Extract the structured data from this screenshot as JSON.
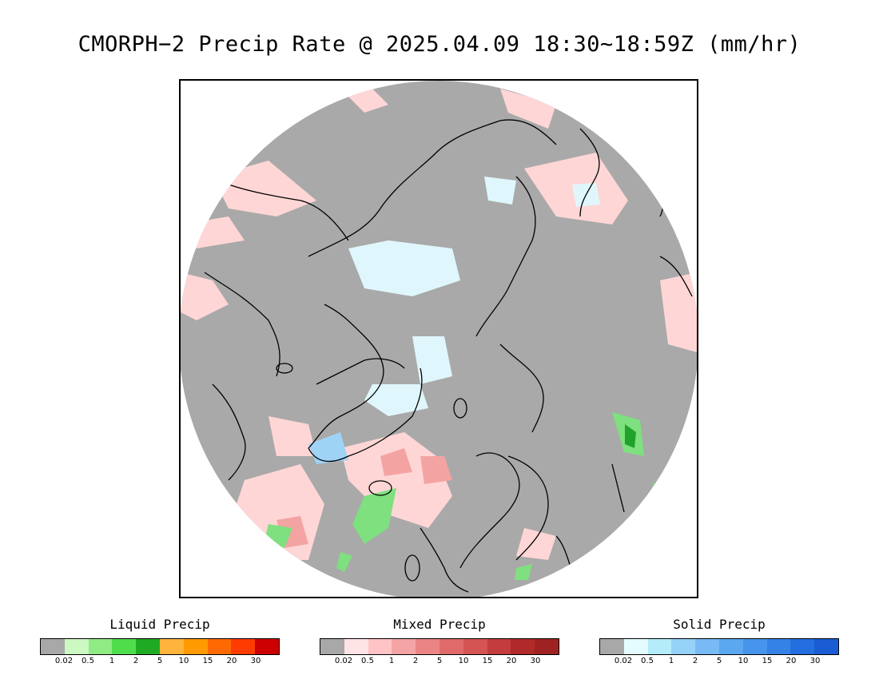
{
  "title": "CMORPH−2 Precip Rate @ 2025.04.09 18:30~18:59Z (mm/hr)",
  "map": {
    "projection": "north-polar-stereographic",
    "colors": {
      "background": "#a9a9a9",
      "coastline": "#000000",
      "mixed_light": "#ffd6d6",
      "mixed_mid": "#f4a3a3",
      "solid_light": "#dff7fc",
      "solid_mid": "#9fd3f6",
      "liquid_light": "#7ee07e",
      "liquid_dark": "#22a22a"
    }
  },
  "legends": [
    {
      "title": "Liquid Precip",
      "colors": [
        "#a8a8a8",
        "#ccf8c2",
        "#91eb84",
        "#4fdd4c",
        "#20aa23",
        "#ffb43c",
        "#ff9a00",
        "#ff6a00",
        "#ff3c00",
        "#cc0000"
      ],
      "ticks": [
        "0.02",
        "0.5",
        "1",
        "2",
        "5",
        "10",
        "15",
        "20",
        "30"
      ]
    },
    {
      "title": "Mixed Precip",
      "colors": [
        "#a8a8a8",
        "#ffe4e6",
        "#ffc3c6",
        "#f4a4a4",
        "#eb8585",
        "#e06a6a",
        "#d45353",
        "#c43c3c",
        "#b12a2a",
        "#9e2222"
      ],
      "ticks": [
        "0.02",
        "0.5",
        "1",
        "2",
        "5",
        "10",
        "15",
        "20",
        "30"
      ]
    },
    {
      "title": "Solid Precip",
      "colors": [
        "#a8a8a8",
        "#e4fcff",
        "#b4ecfa",
        "#96d2f7",
        "#78baf5",
        "#5ca8f0",
        "#4694ec",
        "#3482e6",
        "#236fe0",
        "#1a5cd4"
      ],
      "ticks": [
        "0.02",
        "0.5",
        "1",
        "2",
        "5",
        "10",
        "15",
        "20",
        "30"
      ]
    }
  ]
}
